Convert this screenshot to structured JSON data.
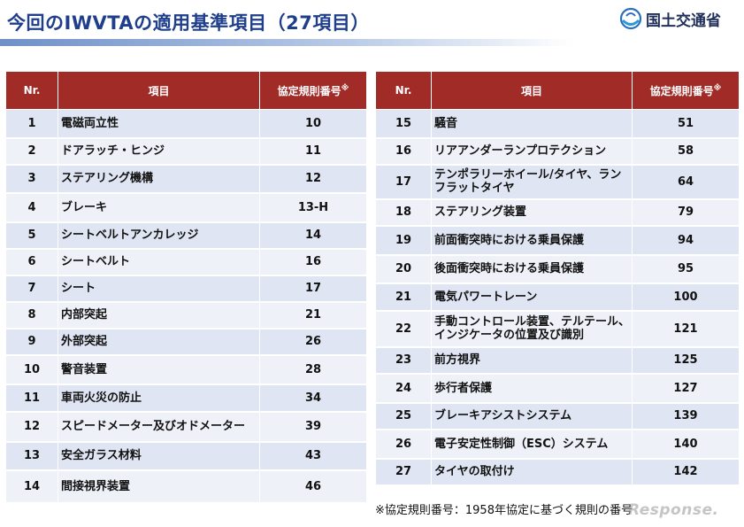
{
  "title": "今回のIWVTAの適用基準項目（27項目）",
  "logo": {
    "text": "国土交通省",
    "icon": "mlit-logo-icon"
  },
  "headers": {
    "nr": "Nr.",
    "item": "項目",
    "reg": "協定規則番号",
    "reg_mark": "※"
  },
  "left_rows": [
    {
      "nr": "1",
      "item": "電磁両立性",
      "reg": "10"
    },
    {
      "nr": "2",
      "item": "ドアラッチ・ヒンジ",
      "reg": "11"
    },
    {
      "nr": "3",
      "item": "ステアリング機構",
      "reg": "12"
    },
    {
      "nr": "4",
      "item": "ブレーキ",
      "reg": "13-H"
    },
    {
      "nr": "5",
      "item": "シートベルトアンカレッジ",
      "reg": "14"
    },
    {
      "nr": "6",
      "item": "シートベルト",
      "reg": "16"
    },
    {
      "nr": "7",
      "item": "シート",
      "reg": "17"
    },
    {
      "nr": "8",
      "item": "内部突起",
      "reg": "21"
    },
    {
      "nr": "9",
      "item": "外部突起",
      "reg": "26"
    },
    {
      "nr": "10",
      "item": "警音装置",
      "reg": "28"
    },
    {
      "nr": "11",
      "item": "車両火災の防止",
      "reg": "34"
    },
    {
      "nr": "12",
      "item": "スピードメーター及びオドメーター",
      "reg": "39"
    },
    {
      "nr": "13",
      "item": "安全ガラス材料",
      "reg": "43"
    },
    {
      "nr": "14",
      "item": "間接視界装置",
      "reg": "46"
    }
  ],
  "right_rows": [
    {
      "nr": "15",
      "item": "騒音",
      "reg": "51"
    },
    {
      "nr": "16",
      "item": "リアアンダーランプロテクション",
      "reg": "58"
    },
    {
      "nr": "17",
      "item": "テンポラリーホイール/タイヤ、ランフラットタイヤ",
      "reg": "64"
    },
    {
      "nr": "18",
      "item": "ステアリング装置",
      "reg": "79"
    },
    {
      "nr": "19",
      "item": "前面衝突時における乗員保護",
      "reg": "94"
    },
    {
      "nr": "20",
      "item": "後面衝突時における乗員保護",
      "reg": "95"
    },
    {
      "nr": "21",
      "item": "電気パワートレーン",
      "reg": "100"
    },
    {
      "nr": "22",
      "item": "手動コントロール装置、テルテール、インジケータの位置及び識別",
      "reg": "121"
    },
    {
      "nr": "23",
      "item": "前方視界",
      "reg": "125"
    },
    {
      "nr": "24",
      "item": "歩行者保護",
      "reg": "127"
    },
    {
      "nr": "25",
      "item": "ブレーキアシストシステム",
      "reg": "139"
    },
    {
      "nr": "26",
      "item": "電子安定性制御（ESC）システム",
      "reg": "140"
    },
    {
      "nr": "27",
      "item": "タイヤの取付け",
      "reg": "142"
    }
  ],
  "footnote": "※協定規則番号：1958年協定に基づく規則の番号",
  "watermark": "Response."
}
